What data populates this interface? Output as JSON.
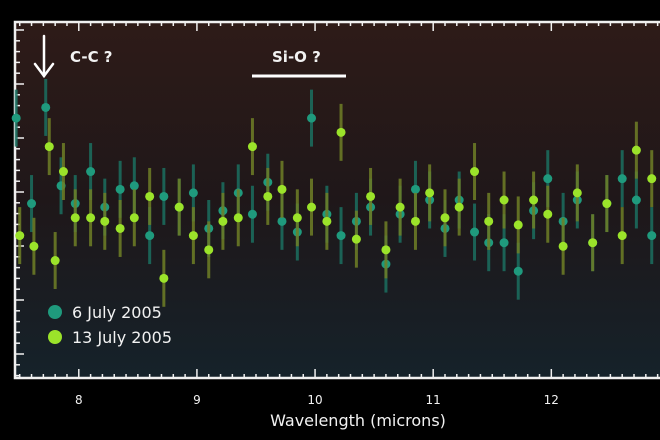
{
  "chart_data": {
    "type": "scatter",
    "title": "",
    "xlabel": "Wavelength (microns)",
    "ylabel": "",
    "xlim": [
      7.46,
      12.92
    ],
    "ylim": [
      0,
      100
    ],
    "xticks": [
      "8",
      "9",
      "10",
      "11",
      "12"
    ],
    "grid": false,
    "legend_position": "bottom-left",
    "annotations": [
      {
        "text": "C-C ?",
        "type": "arrow",
        "x": 7.72
      },
      {
        "text": "Si-O ?",
        "type": "range",
        "x_range": [
          9.45,
          10.25
        ]
      }
    ],
    "error_bar": 8,
    "series": [
      {
        "name": "6 July 2005",
        "color": "#1f9a7d",
        "errcolor": "#1b6f60",
        "points": [
          [
            7.47,
            73
          ],
          [
            7.6,
            49
          ],
          [
            7.72,
            76
          ],
          [
            7.85,
            54
          ],
          [
            7.97,
            49
          ],
          [
            8.1,
            58
          ],
          [
            8.22,
            48
          ],
          [
            8.35,
            53
          ],
          [
            8.47,
            54
          ],
          [
            8.6,
            40
          ],
          [
            8.72,
            51
          ],
          [
            8.85,
            48
          ],
          [
            8.97,
            52
          ],
          [
            9.1,
            42
          ],
          [
            9.22,
            47
          ],
          [
            9.35,
            52
          ],
          [
            9.47,
            46
          ],
          [
            9.6,
            55
          ],
          [
            9.72,
            44
          ],
          [
            9.85,
            41
          ],
          [
            9.97,
            73
          ],
          [
            10.1,
            46
          ],
          [
            10.22,
            40
          ],
          [
            10.35,
            44
          ],
          [
            10.47,
            48
          ],
          [
            10.6,
            32
          ],
          [
            10.72,
            46
          ],
          [
            10.85,
            53
          ],
          [
            10.97,
            50
          ],
          [
            11.1,
            42
          ],
          [
            11.22,
            50
          ],
          [
            11.35,
            41
          ],
          [
            11.47,
            38
          ],
          [
            11.6,
            38
          ],
          [
            11.72,
            30
          ],
          [
            11.85,
            47
          ],
          [
            11.97,
            56
          ],
          [
            12.1,
            44
          ],
          [
            12.22,
            50
          ],
          [
            12.35,
            38
          ],
          [
            12.47,
            49
          ],
          [
            12.6,
            56
          ],
          [
            12.72,
            50
          ],
          [
            12.85,
            40
          ]
        ]
      },
      {
        "name": "13 July 2005",
        "color": "#9be32a",
        "errcolor": "#6f7f26",
        "points": [
          [
            7.5,
            40
          ],
          [
            7.62,
            37
          ],
          [
            7.75,
            65
          ],
          [
            7.8,
            33
          ],
          [
            7.87,
            58
          ],
          [
            7.97,
            45
          ],
          [
            8.1,
            45
          ],
          [
            8.22,
            44
          ],
          [
            8.35,
            42
          ],
          [
            8.47,
            45
          ],
          [
            8.6,
            51
          ],
          [
            8.72,
            28
          ],
          [
            8.85,
            48
          ],
          [
            8.97,
            40
          ],
          [
            9.1,
            36
          ],
          [
            9.22,
            44
          ],
          [
            9.35,
            45
          ],
          [
            9.47,
            65
          ],
          [
            9.6,
            51
          ],
          [
            9.72,
            53
          ],
          [
            9.85,
            45
          ],
          [
            9.97,
            48
          ],
          [
            10.1,
            44
          ],
          [
            10.22,
            69
          ],
          [
            10.35,
            39
          ],
          [
            10.47,
            51
          ],
          [
            10.6,
            36
          ],
          [
            10.72,
            48
          ],
          [
            10.85,
            44
          ],
          [
            10.97,
            52
          ],
          [
            11.1,
            45
          ],
          [
            11.22,
            48
          ],
          [
            11.35,
            58
          ],
          [
            11.47,
            44
          ],
          [
            11.6,
            50
          ],
          [
            11.72,
            43
          ],
          [
            11.85,
            50
          ],
          [
            11.97,
            46
          ],
          [
            12.1,
            37
          ],
          [
            12.22,
            52
          ],
          [
            12.35,
            38
          ],
          [
            12.47,
            49
          ],
          [
            12.6,
            40
          ],
          [
            12.72,
            64
          ],
          [
            12.85,
            56
          ]
        ]
      }
    ]
  }
}
